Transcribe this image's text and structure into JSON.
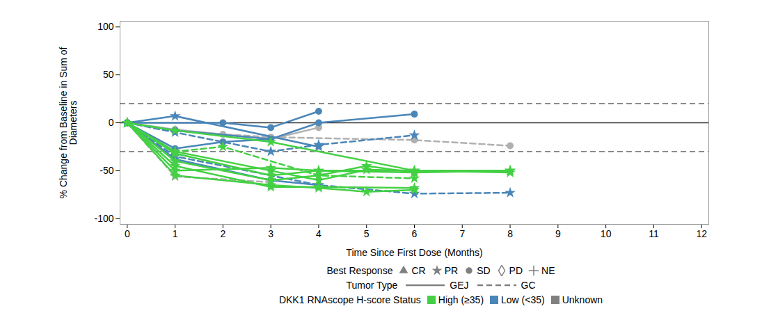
{
  "chart_data": {
    "type": "line",
    "xlabel": "Time Since First Dose (Months)",
    "ylabel": "% Change from Baseline in Sum of Diameters",
    "xlim": [
      -0.15,
      12.15
    ],
    "xticks": [
      0,
      1,
      2,
      3,
      4,
      5,
      6,
      7,
      8,
      9,
      10,
      11,
      12
    ],
    "ylim": [
      -106,
      106
    ],
    "yticks": [
      -100,
      -50,
      0,
      50,
      100
    ],
    "grid": false,
    "reference_lines": [
      {
        "y": 20,
        "line_style": "dashed"
      },
      {
        "y": -30,
        "line_style": "dashed"
      },
      {
        "y": 0,
        "line_style": "solid"
      }
    ],
    "series": [
      {
        "color": "#b0b0b0",
        "line_style": "dashed",
        "marker": "circle",
        "x": [
          0,
          1,
          2,
          3,
          6,
          8
        ],
        "values": [
          0,
          -8,
          -12,
          -15,
          -18,
          -24
        ]
      },
      {
        "color": "#b0b0b0",
        "line_style": "solid",
        "marker": "circle",
        "x": [
          0,
          1,
          3,
          4
        ],
        "values": [
          0,
          -7,
          -17,
          -5
        ]
      },
      {
        "color": "#b0b0b0",
        "line_style": "dashed",
        "marker": "star",
        "x": [
          0,
          1,
          3
        ],
        "values": [
          0,
          -56,
          -62
        ]
      },
      {
        "color": "#4a86b8",
        "line_style": "solid",
        "marker": "circle",
        "x": [
          0,
          2,
          3,
          4
        ],
        "values": [
          0,
          0,
          -5,
          12
        ]
      },
      {
        "color": "#4a86b8",
        "line_style": "solid",
        "marker": "circle",
        "x": [
          0,
          1,
          3,
          4,
          6
        ],
        "values": [
          0,
          -8,
          -17,
          0,
          9
        ]
      },
      {
        "color": "#4a86b8",
        "line_style": "solid",
        "marker": "star",
        "x": [
          0,
          1,
          4
        ],
        "values": [
          0,
          7,
          -25
        ]
      },
      {
        "color": "#4a86b8",
        "line_style": "solid",
        "marker": "star",
        "x": [
          0,
          1,
          3,
          4
        ],
        "values": [
          0,
          -38,
          -60,
          -65
        ]
      },
      {
        "color": "#4a86b8",
        "line_style": "dashed",
        "marker": "star",
        "x": [
          0,
          1,
          3,
          4,
          6
        ],
        "values": [
          0,
          -10,
          -30,
          -23,
          -13
        ]
      },
      {
        "color": "#4a86b8",
        "line_style": "dashed",
        "marker": "star",
        "x": [
          0,
          1,
          3,
          4,
          6,
          8
        ],
        "values": [
          0,
          -35,
          -55,
          -65,
          -74,
          -73
        ]
      },
      {
        "color": "#4a86b8",
        "line_style": "solid",
        "marker": "circle",
        "x": [
          0,
          1,
          2,
          3
        ],
        "values": [
          0,
          -27,
          -20,
          -17
        ]
      },
      {
        "color": "#44d044",
        "line_style": "solid",
        "marker": "star",
        "x": [
          0,
          1,
          3,
          6,
          8
        ],
        "values": [
          0,
          -8,
          -20,
          -50,
          -50
        ]
      },
      {
        "color": "#44d044",
        "line_style": "solid",
        "marker": "star",
        "x": [
          0,
          1,
          3,
          4,
          6,
          8
        ],
        "values": [
          0,
          -50,
          -47,
          -50,
          -50,
          -52
        ]
      },
      {
        "color": "#44d044",
        "line_style": "solid",
        "marker": "star",
        "x": [
          0,
          1,
          3,
          4,
          5,
          6
        ],
        "values": [
          0,
          -55,
          -65,
          -68,
          -72,
          -70
        ]
      },
      {
        "color": "#44d044",
        "line_style": "solid",
        "marker": "star",
        "x": [
          0,
          1,
          3,
          4,
          5,
          6
        ],
        "values": [
          0,
          -40,
          -60,
          -55,
          -45,
          -52
        ]
      },
      {
        "color": "#44d044",
        "line_style": "solid",
        "marker": "star",
        "x": [
          0,
          1,
          3,
          4,
          6,
          8
        ],
        "values": [
          0,
          -32,
          -55,
          -50,
          -52,
          -50
        ]
      },
      {
        "color": "#44d044",
        "line_style": "dashed",
        "marker": "star",
        "x": [
          0,
          1,
          2,
          4,
          6
        ],
        "values": [
          0,
          -30,
          -25,
          -55,
          -58
        ]
      },
      {
        "color": "#44d044",
        "line_style": "solid",
        "marker": "star",
        "x": [
          0,
          1,
          3,
          4,
          6
        ],
        "values": [
          0,
          -45,
          -67,
          -67,
          -68
        ]
      },
      {
        "color": "#44d044",
        "line_style": "solid",
        "marker": "star",
        "x": [
          0,
          1,
          3,
          4,
          5,
          6,
          8
        ],
        "values": [
          0,
          -30,
          -50,
          -60,
          -49,
          -50,
          -50
        ]
      }
    ],
    "legend_groups": [
      {
        "title": "Best Response",
        "items": [
          {
            "label": "CR",
            "marker": "triangle"
          },
          {
            "label": "PR",
            "marker": "star"
          },
          {
            "label": "SD",
            "marker": "circle"
          },
          {
            "label": "PD",
            "marker": "diamond"
          },
          {
            "label": "NE",
            "marker": "plus"
          }
        ]
      },
      {
        "title": "Tumor Type",
        "items": [
          {
            "label": "GEJ",
            "line_style": "solid"
          },
          {
            "label": "GC",
            "line_style": "dashed"
          }
        ]
      },
      {
        "title": "DKK1 RNAscope H-score Status",
        "items": [
          {
            "label": "High (≥35)",
            "color": "#44d044"
          },
          {
            "label": "Low (<35)",
            "color": "#4a86b8"
          },
          {
            "label": "Unknown",
            "color": "#808080"
          }
        ]
      }
    ]
  }
}
